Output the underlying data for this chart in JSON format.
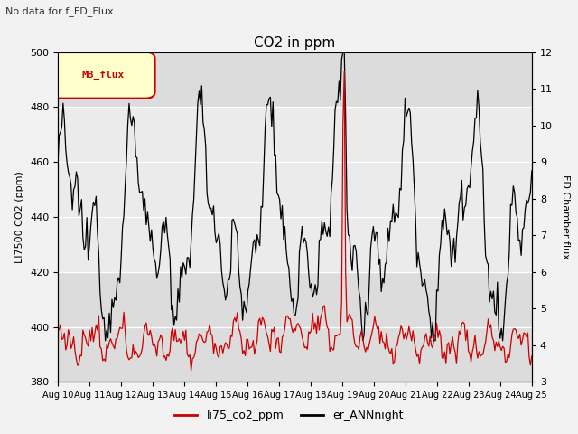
{
  "title": "CO2 in ppm",
  "top_label": "No data for f_FD_Flux",
  "ylabel_left": "LI7500 CO2 (ppm)",
  "ylabel_right": "FD Chamber flux",
  "ylim_left": [
    380,
    500
  ],
  "ylim_right": [
    3.0,
    12.0
  ],
  "yticks_left": [
    380,
    400,
    420,
    440,
    460,
    480,
    500
  ],
  "yticks_right": [
    3.0,
    4.0,
    5.0,
    6.0,
    7.0,
    8.0,
    9.0,
    10.0,
    11.0,
    12.0
  ],
  "xtick_labels": [
    "Aug 10",
    "Aug 11",
    "Aug 12",
    "Aug 13",
    "Aug 14",
    "Aug 15",
    "Aug 16",
    "Aug 17",
    "Aug 18",
    "Aug 19",
    "Aug 20",
    "Aug 21",
    "Aug 22",
    "Aug 23",
    "Aug 24",
    "Aug 25"
  ],
  "legend_entries": [
    "li75_co2_ppm",
    "er_ANNnight"
  ],
  "line1_color": "#cc0000",
  "line2_color": "#000000",
  "bg_color": "#f2f2f2",
  "plot_bg_outer": "#dcdcdc",
  "plot_bg_inner": "#ebebeb",
  "legend_box_facecolor": "#ffffcc",
  "legend_box_edgecolor": "#cc0000",
  "legend_box_text": "MB_flux",
  "figsize": [
    6.4,
    4.8
  ],
  "dpi": 100,
  "shade_ylim": [
    420,
    480
  ]
}
